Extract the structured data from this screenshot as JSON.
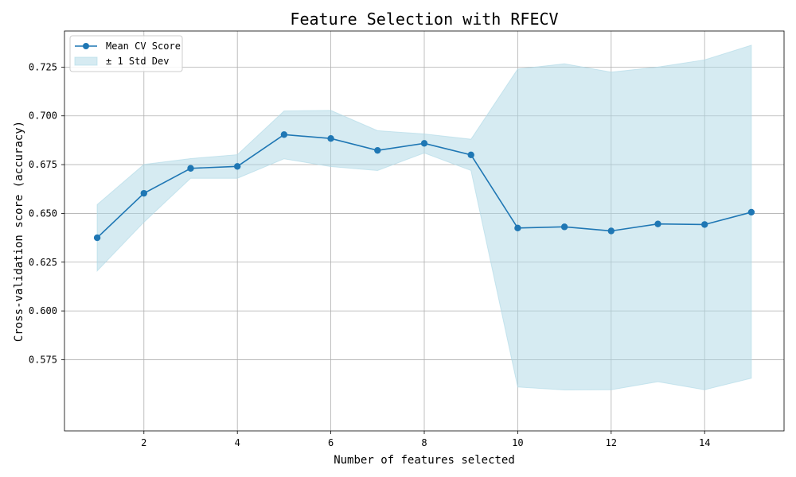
{
  "chart_data": {
    "type": "line",
    "title": "Feature Selection with RFECV",
    "xlabel": "Number of features selected",
    "ylabel": "Cross-validation score (accuracy)",
    "xlim": [
      0.3,
      15.7
    ],
    "ylim": [
      0.5385,
      0.7435
    ],
    "x_ticks": [
      2,
      4,
      6,
      8,
      10,
      12,
      14
    ],
    "y_ticks": [
      0.575,
      0.6,
      0.625,
      0.65,
      0.675,
      0.7,
      0.725
    ],
    "x_tick_labels": [
      "2",
      "4",
      "6",
      "8",
      "10",
      "12",
      "14"
    ],
    "y_tick_labels": [
      "0.575",
      "0.600",
      "0.625",
      "0.650",
      "0.675",
      "0.700",
      "0.725"
    ],
    "grid": true,
    "legend_position": "top-left",
    "x": [
      1,
      2,
      3,
      4,
      5,
      6,
      7,
      8,
      9,
      10,
      11,
      12,
      13,
      14,
      15
    ],
    "series": [
      {
        "name": "Mean CV Score",
        "kind": "line-marker",
        "color": "#1f77b4",
        "values": [
          0.6375,
          0.6603,
          0.6731,
          0.6741,
          0.6904,
          0.6884,
          0.6823,
          0.6859,
          0.68,
          0.6425,
          0.6431,
          0.641,
          0.6446,
          0.6443,
          0.6506
        ]
      },
      {
        "name": "± 1 Std Dev",
        "kind": "band",
        "color": "#add8e6",
        "lower": [
          0.6205,
          0.6455,
          0.668,
          0.668,
          0.678,
          0.674,
          0.672,
          0.681,
          0.672,
          0.561,
          0.5595,
          0.5596,
          0.5637,
          0.5596,
          0.5655
        ],
        "upper": [
          0.6545,
          0.6751,
          0.6781,
          0.6801,
          0.7025,
          0.7028,
          0.6924,
          0.6907,
          0.688,
          0.724,
          0.7267,
          0.7224,
          0.725,
          0.7287,
          0.7362
        ]
      }
    ]
  }
}
